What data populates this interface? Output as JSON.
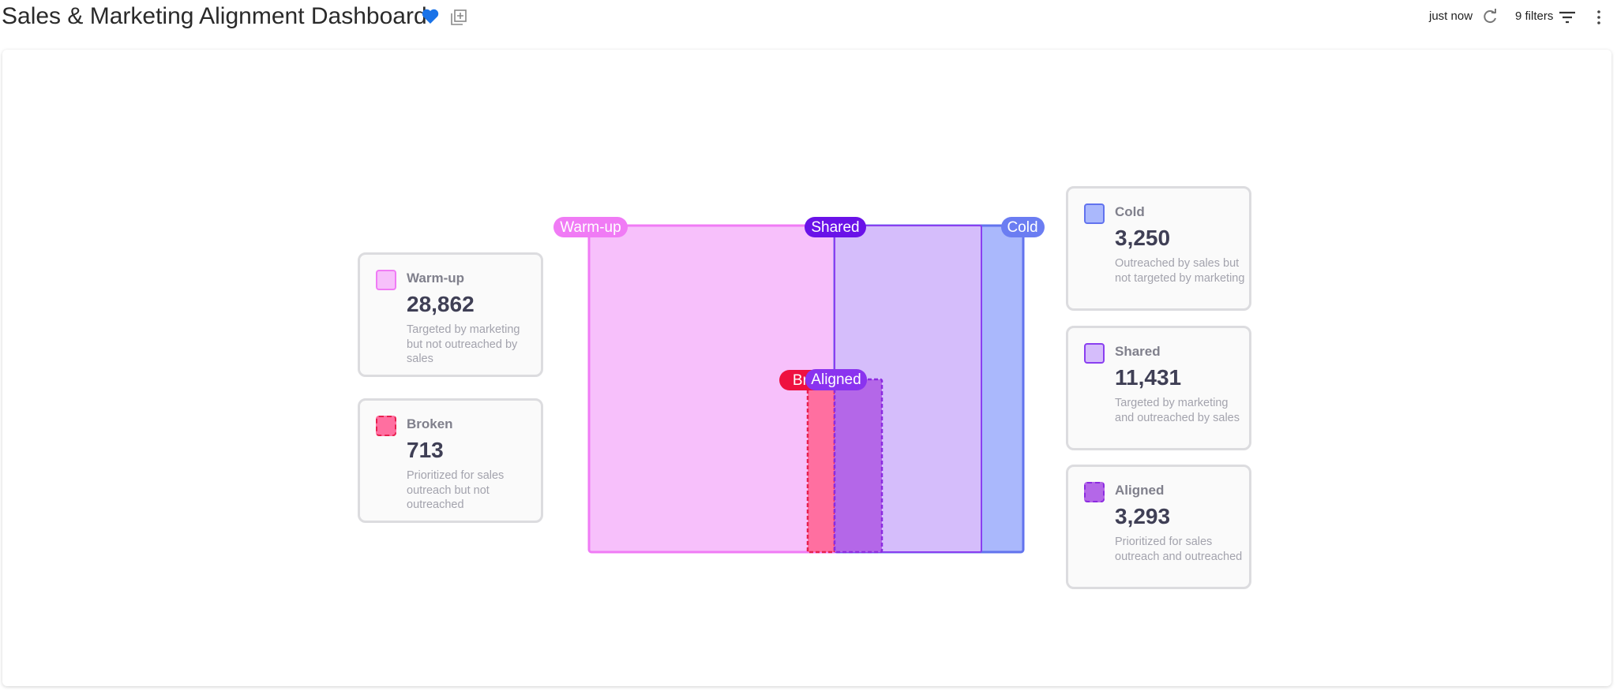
{
  "header": {
    "title": "Sales & Marketing Alignment Dashboard",
    "updated": "just now",
    "filters": "9 filters"
  },
  "cards": [
    {
      "label": "Warm-up",
      "value": "28,862",
      "description": "Targeted by marketing but not outreached by sales"
    },
    {
      "label": "Broken",
      "value": "713",
      "description": "Prioritized for sales outreach but not outreached"
    },
    {
      "label": "Cold",
      "value": "3,250",
      "description": "Outreached by sales but not targeted by marketing"
    },
    {
      "label": "Shared",
      "value": "11,431",
      "description": "Targeted by marketing and outreached by sales"
    },
    {
      "label": "Aligned",
      "value": "3,293",
      "description": "Prioritized for sales outreach and outreached"
    }
  ]
}
